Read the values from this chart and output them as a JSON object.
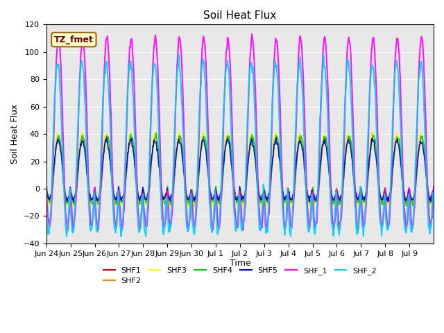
{
  "title": "Soil Heat Flux",
  "ylabel": "Soil Heat Flux",
  "xlabel": "Time",
  "ylim": [
    -40,
    120
  ],
  "annotation_text": "TZ_fmet",
  "annotation_bg": "#FFFFCC",
  "annotation_border": "#996600",
  "series": [
    "SHF1",
    "SHF2",
    "SHF3",
    "SHF4",
    "SHF5",
    "SHF_1",
    "SHF_2"
  ],
  "colors": [
    "#CC0000",
    "#FF8800",
    "#FFFF00",
    "#00CC00",
    "#0000CC",
    "#FF00FF",
    "#00CCFF"
  ],
  "xtick_labels": [
    "Jun 24",
    "Jun 25",
    "Jun 26",
    "Jun 27",
    "Jun 28",
    "Jun 29",
    "Jun 30",
    "Jul 1",
    "Jul 2",
    "Jul 3",
    "Jul 4",
    "Jul 5",
    "Jul 6",
    "Jul 7",
    "Jul 8",
    "Jul 9"
  ],
  "bg_color": "#E8E8E8",
  "grid_color": "#FFFFFF",
  "n_days": 16,
  "samples_per_day": 48,
  "yticks": [
    -40,
    -20,
    0,
    20,
    40,
    60,
    80,
    100,
    120
  ]
}
